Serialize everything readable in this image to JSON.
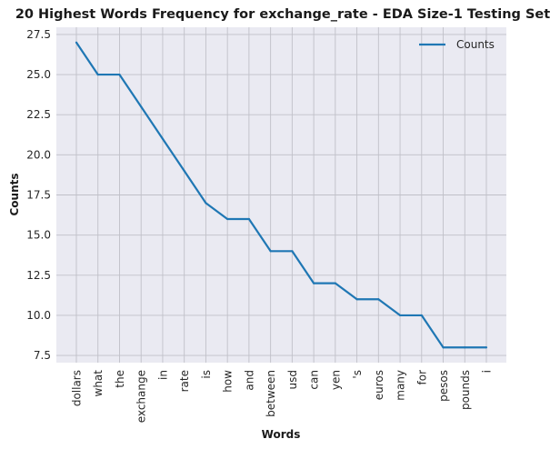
{
  "chart_data": {
    "type": "line",
    "title": "20 Highest Words Frequency for exchange_rate - EDA Size-1 Testing Set",
    "xlabel": "Words",
    "ylabel": "Counts",
    "categories": [
      "dollars",
      "what",
      "the",
      "exchange",
      "in",
      "rate",
      "is",
      "how",
      "and",
      "between",
      "usd",
      "can",
      "yen",
      "'s",
      "euros",
      "many",
      "for",
      "pesos",
      "pounds",
      "i"
    ],
    "series": [
      {
        "name": "Counts",
        "values": [
          27,
          25,
          25,
          23,
          21,
          19,
          17,
          16,
          16,
          14,
          14,
          12,
          12,
          11,
          11,
          10,
          10,
          8,
          8,
          8
        ]
      }
    ],
    "yticks": [
      "7.5",
      "10.0",
      "12.5",
      "15.0",
      "17.5",
      "20.0",
      "22.5",
      "25.0",
      "27.5"
    ],
    "ylim": [
      7.05,
      27.95
    ],
    "grid": true,
    "legend": "top-right",
    "colors": {
      "line": "#1f77b4",
      "plot_background": "#eaeaf2",
      "grid": "#c0c0c8"
    }
  }
}
